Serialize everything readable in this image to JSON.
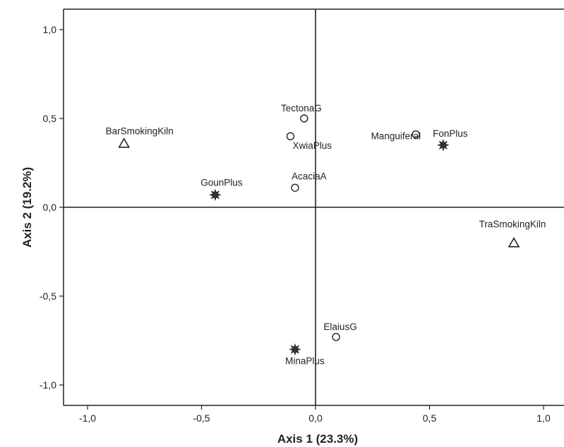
{
  "chart_data": {
    "type": "scatter",
    "xlabel": "Axis 1 (23.3%)",
    "ylabel": "Axis 2 (19.2%)",
    "xlim": [
      -1.1,
      1.08
    ],
    "ylim": [
      -1.12,
      1.1
    ],
    "x_ticks": [
      -1.0,
      -0.5,
      0.0,
      0.5,
      1.0
    ],
    "x_tick_labels": [
      "-1,0",
      "-0,5",
      "0,0",
      "0,5",
      "1,0"
    ],
    "y_ticks": [
      1.0,
      0.5,
      0.0,
      -0.5,
      -1.0
    ],
    "y_tick_labels": [
      "1,0",
      "0,5",
      "0,0",
      "-0,5",
      "-1,0"
    ],
    "grid": false,
    "reference_lines": {
      "x": 0,
      "y": 0
    },
    "series": [
      {
        "marker": "triangle",
        "points": [
          {
            "label": "BarSmokingKiln",
            "x": -0.84,
            "y": 0.36
          },
          {
            "label": "TraSmokingKiln",
            "x": 0.87,
            "y": -0.2
          }
        ]
      },
      {
        "marker": "circle",
        "points": [
          {
            "label": "TectonaG",
            "x": -0.05,
            "y": 0.5
          },
          {
            "label": "XwiaPlus",
            "x": -0.11,
            "y": 0.4
          },
          {
            "label": "Manguiferal",
            "x": 0.44,
            "y": 0.41
          },
          {
            "label": "AcaciaA",
            "x": -0.09,
            "y": 0.11
          },
          {
            "label": "ElaiusG",
            "x": 0.09,
            "y": -0.73
          }
        ]
      },
      {
        "marker": "star",
        "points": [
          {
            "label": "FonPlus",
            "x": 0.56,
            "y": 0.35
          },
          {
            "label": "GounPlus",
            "x": -0.44,
            "y": 0.07
          },
          {
            "label": "MinaPlus",
            "x": -0.09,
            "y": -0.8
          }
        ]
      }
    ]
  }
}
